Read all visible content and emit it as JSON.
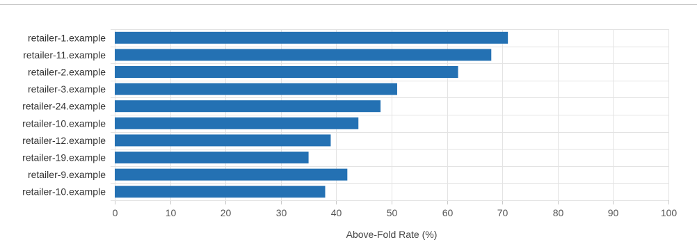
{
  "chart_data": {
    "type": "bar",
    "orientation": "horizontal",
    "categories": [
      "retailer-1.example",
      "retailer-11.example",
      "retailer-2.example",
      "retailer-3.example",
      "retailer-24.example",
      "retailer-10.example",
      "retailer-12.example",
      "retailer-19.example",
      "retailer-9.example",
      "retailer-10.example"
    ],
    "values": [
      71,
      68,
      62,
      51,
      48,
      44,
      39,
      35,
      42,
      38
    ],
    "xlabel": "Above-Fold Rate (%)",
    "ylabel": "",
    "xlim": [
      0,
      100
    ],
    "xticks": [
      0,
      10,
      20,
      30,
      40,
      50,
      60,
      70,
      80,
      90,
      100
    ],
    "grid": true,
    "bar_color": "#2471b3",
    "grid_color": "#e3e3e3"
  }
}
